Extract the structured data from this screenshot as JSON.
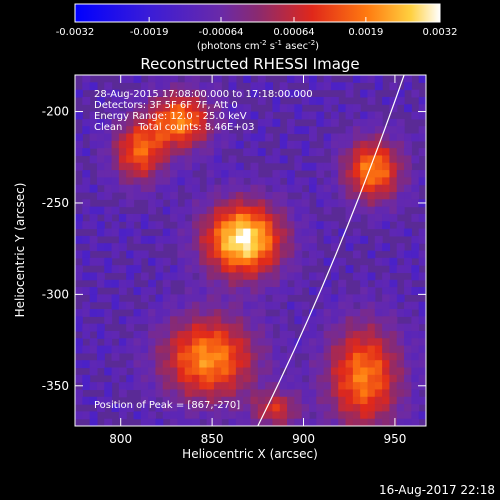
{
  "colorbar": {
    "tick_labels": [
      "-0.0032",
      "-0.0019",
      "-0.00064",
      "0.00064",
      "0.0019",
      "0.0032"
    ],
    "units_prefix": "(photons cm",
    "units_exp1": "-2",
    "units_mid1": " s",
    "units_exp2": "-1",
    "units_mid2": " asec",
    "units_exp3": "-2",
    "units_suffix": ")"
  },
  "plot": {
    "title": "Reconstructed RHESSI Image",
    "xlabel": "Heliocentric X (arcsec)",
    "ylabel": "Heliocentric Y (arcsec)",
    "x_ticks": [
      "800",
      "850",
      "900",
      "950"
    ],
    "y_ticks": [
      "-200",
      "-250",
      "-300",
      "-350"
    ]
  },
  "annotations": {
    "line1": "28-Aug-2015 17:08:00.000 to 17:18:00.000",
    "line2": "Detectors: 3F 5F 6F 7F, Att 0",
    "line3": "Energy Range: 12.0 - 25.0 keV",
    "line4": "Clean     Total counts: 8.46E+03",
    "peak": "Position of Peak = [867,-270]"
  },
  "footer": {
    "timestamp": "16-Aug-2017 22:18"
  },
  "chart_data": {
    "type": "heatmap",
    "title": "Reconstructed RHESSI Image",
    "xlabel": "Heliocentric X (arcsec)",
    "ylabel": "Heliocentric Y (arcsec)",
    "xlim": [
      775,
      967
    ],
    "ylim": [
      -372,
      -180
    ],
    "x_ticks": [
      800,
      850,
      900,
      950
    ],
    "y_ticks": [
      -200,
      -250,
      -300,
      -350
    ],
    "colorbar_range": [
      -0.0032,
      0.0032
    ],
    "colorbar_ticks": [
      -0.0032,
      -0.0019,
      -0.00064,
      0.00064,
      0.0019,
      0.0032
    ],
    "background_value": -0.0012,
    "sources": [
      {
        "x": 867,
        "y": -270,
        "peak": 0.0032,
        "sx": 15,
        "sy": 14
      },
      {
        "x": 833,
        "y": -205,
        "peak": 0.0019,
        "sx": 12,
        "sy": 11
      },
      {
        "x": 810,
        "y": -222,
        "peak": 0.0015,
        "sx": 10,
        "sy": 12
      },
      {
        "x": 938,
        "y": -232,
        "peak": 0.002,
        "sx": 11,
        "sy": 12
      },
      {
        "x": 848,
        "y": -335,
        "peak": 0.0021,
        "sx": 18,
        "sy": 16
      },
      {
        "x": 933,
        "y": -345,
        "peak": 0.0019,
        "sx": 14,
        "sy": 20
      },
      {
        "x": 885,
        "y": -363,
        "peak": 0.0008,
        "sx": 9,
        "sy": 7
      }
    ],
    "limb_line": [
      [
        875,
        -372
      ],
      [
        918,
        -286
      ],
      [
        955,
        -180
      ]
    ],
    "peak_position": [
      867,
      -270
    ]
  }
}
